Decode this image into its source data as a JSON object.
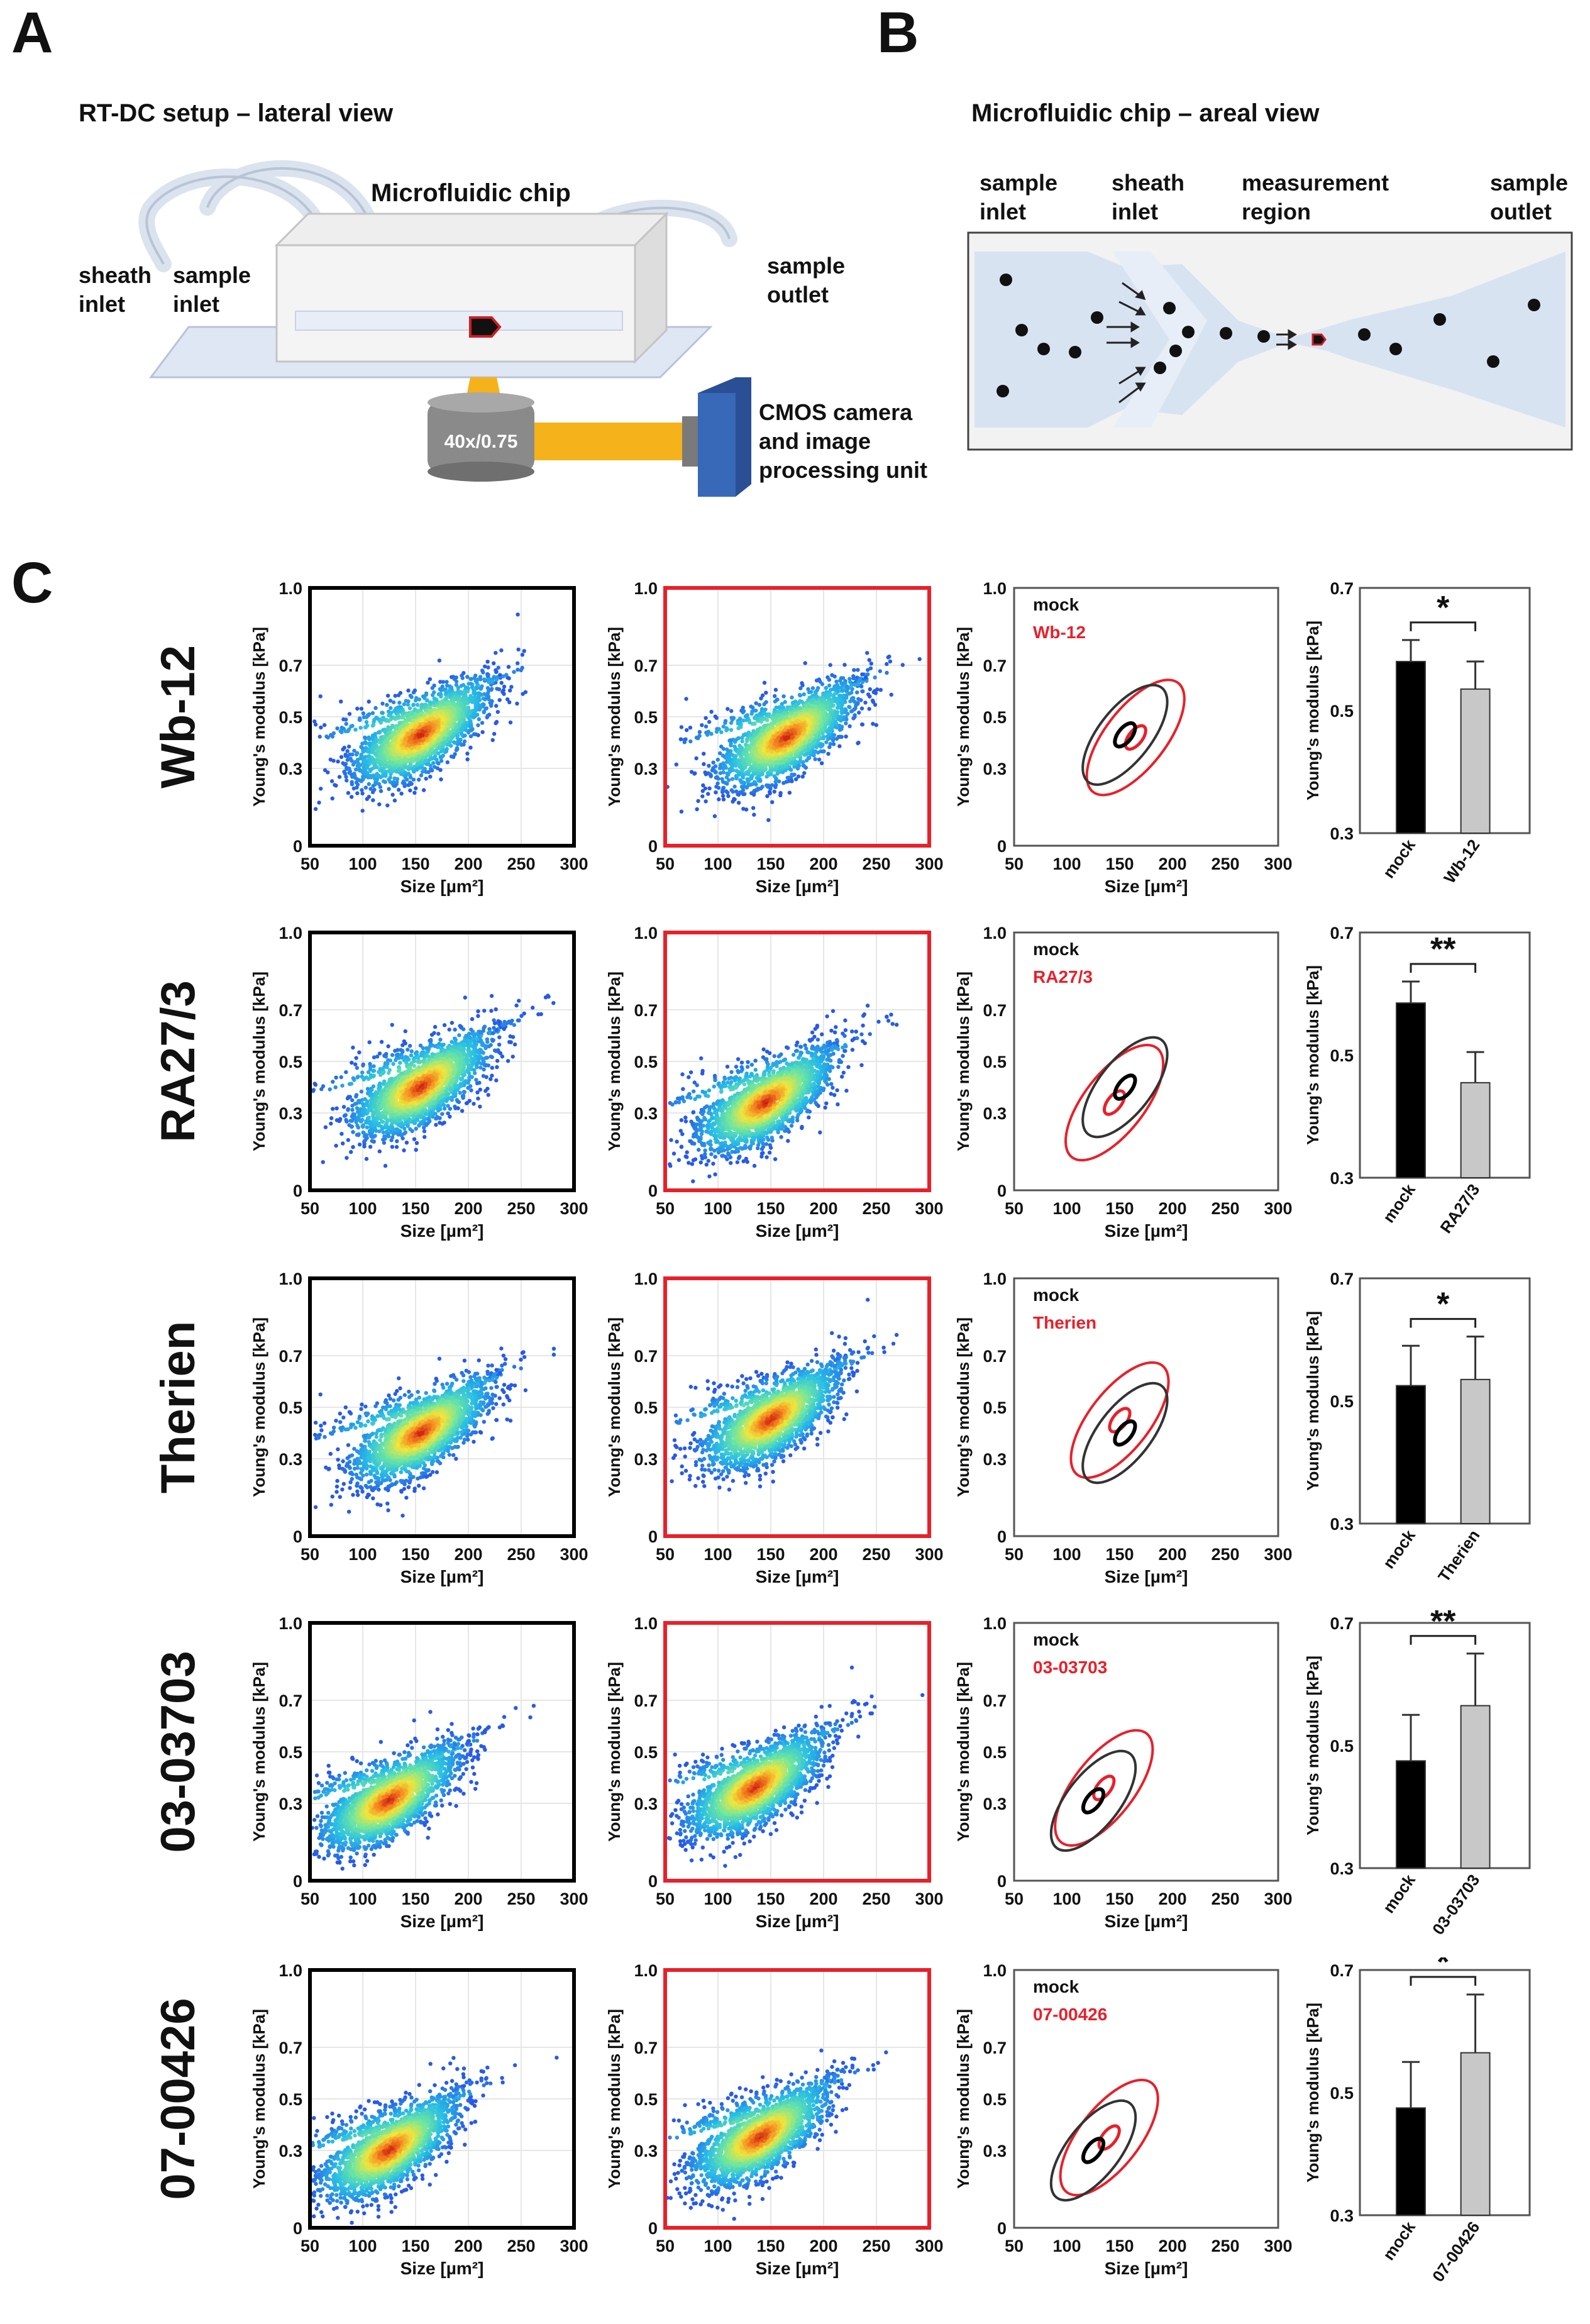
{
  "panels": {
    "A": "A",
    "B": "B",
    "C": "C"
  },
  "panel_a": {
    "title": "RT-DC setup – lateral view",
    "chip_label": "Microfluidic chip",
    "sheath_inlet": "sheath\ninlet",
    "sample_inlet": "sample\ninlet",
    "sample_outlet": "sample\noutlet",
    "objective": "40x/0.75",
    "camera": "CMOS camera\nand image\nprocessing unit"
  },
  "panel_b": {
    "title": "Microfluidic chip – areal view",
    "sample_inlet": "sample\ninlet",
    "sheath_inlet": "sheath\ninlet",
    "measurement_region": "measurement\nregion",
    "sample_outlet": "sample\noutlet"
  },
  "panel_c": {
    "scatter_xlabel": "Size [µm²]",
    "scatter_ylabel": "Young's modulus [kPa]",
    "scatter_xticks": [
      "50",
      "100",
      "150",
      "200",
      "250",
      "300"
    ],
    "scatter_yticks": [
      "0",
      "0.3",
      "0.5",
      "0.7",
      "1.0"
    ],
    "bar_ylabel": "Young's modulus [kPa]",
    "bar_yticks": [
      "0.3",
      "0.5",
      "0.7"
    ],
    "mock_label": "mock",
    "colors": {
      "mock": "#000000",
      "treated": "#e8202a",
      "bar_treated": "#c8c8c8",
      "contour_mock": "#333333"
    }
  },
  "chart_data": [
    {
      "type": "bar",
      "row": "Wb-12",
      "categories": [
        "mock",
        "Wb-12"
      ],
      "values": [
        0.58,
        0.535
      ],
      "errors": [
        0.035,
        0.045
      ],
      "ylim": [
        0.3,
        0.7
      ],
      "significance": "*",
      "ylabel": "Young's modulus [kPa]"
    },
    {
      "type": "bar",
      "row": "RA27/3",
      "categories": [
        "mock",
        "RA27/3"
      ],
      "values": [
        0.585,
        0.455
      ],
      "errors": [
        0.035,
        0.05
      ],
      "ylim": [
        0.3,
        0.7
      ],
      "significance": "**",
      "ylabel": "Young's modulus [kPa]"
    },
    {
      "type": "bar",
      "row": "Therien",
      "categories": [
        "mock",
        "Therien"
      ],
      "values": [
        0.525,
        0.535
      ],
      "errors": [
        0.065,
        0.07
      ],
      "ylim": [
        0.3,
        0.7
      ],
      "significance": "*",
      "ylabel": "Young's modulus [kPa]"
    },
    {
      "type": "bar",
      "row": "03-03703",
      "categories": [
        "mock",
        "03-03703"
      ],
      "values": [
        0.475,
        0.565
      ],
      "errors": [
        0.075,
        0.085
      ],
      "ylim": [
        0.3,
        0.7
      ],
      "significance": "**",
      "ylabel": "Young's modulus [kPa]"
    },
    {
      "type": "bar",
      "row": "07-00426",
      "categories": [
        "mock",
        "07-00426"
      ],
      "values": [
        0.475,
        0.565
      ],
      "errors": [
        0.075,
        0.095
      ],
      "ylim": [
        0.3,
        0.7
      ],
      "significance": "*",
      "ylabel": "Young's modulus [kPa]"
    }
  ],
  "rows": [
    {
      "label": "Wb-12",
      "treated": "Wb-12",
      "mock_center": [
        155,
        0.43
      ],
      "treated_center": [
        165,
        0.42
      ]
    },
    {
      "label": "RA27/3",
      "treated": "RA27/3",
      "mock_center": [
        155,
        0.4
      ],
      "treated_center": [
        145,
        0.34
      ]
    },
    {
      "label": "Therien",
      "treated": "Therien",
      "mock_center": [
        155,
        0.4
      ],
      "treated_center": [
        150,
        0.45
      ]
    },
    {
      "label": "03-03703",
      "treated": "03-03703",
      "mock_center": [
        125,
        0.31
      ],
      "treated_center": [
        135,
        0.36
      ]
    },
    {
      "label": "07-00426",
      "treated": "07-00426",
      "mock_center": [
        125,
        0.3
      ],
      "treated_center": [
        140,
        0.35
      ]
    }
  ]
}
